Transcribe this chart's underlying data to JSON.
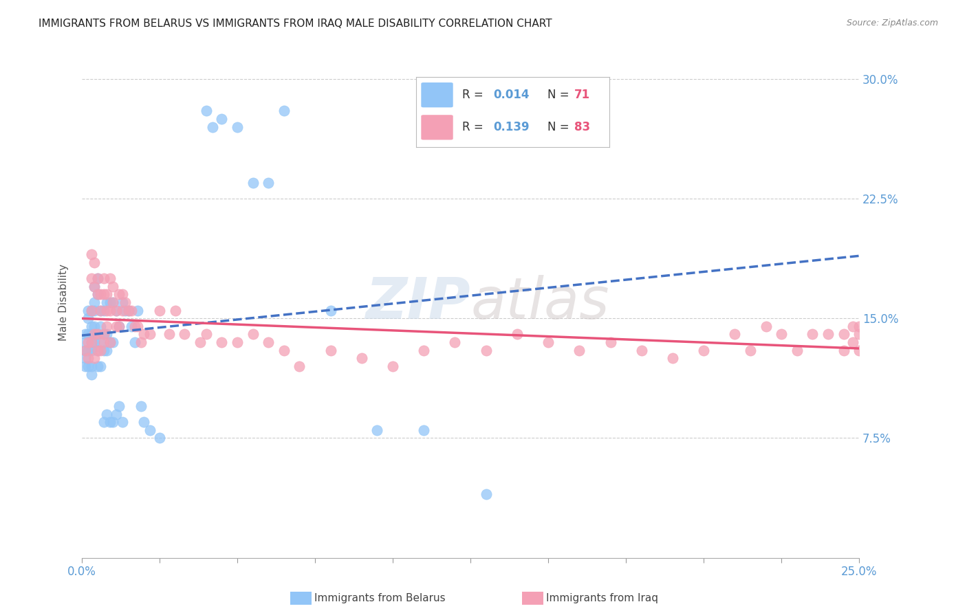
{
  "title": "IMMIGRANTS FROM BELARUS VS IMMIGRANTS FROM IRAQ MALE DISABILITY CORRELATION CHART",
  "source": "Source: ZipAtlas.com",
  "ylabel": "Male Disability",
  "ytick_labels": [
    "7.5%",
    "15.0%",
    "22.5%",
    "30.0%"
  ],
  "ytick_values": [
    0.075,
    0.15,
    0.225,
    0.3
  ],
  "xlim": [
    0.0,
    0.25
  ],
  "ylim": [
    0.0,
    0.32
  ],
  "color_belarus": "#92C5F7",
  "color_iraq": "#F4A0B5",
  "color_trendline_belarus": "#4472C4",
  "color_trendline_iraq": "#E8547A",
  "watermark_zip": "ZIP",
  "watermark_atlas": "atlas",
  "belarus_x": [
    0.001,
    0.001,
    0.001,
    0.001,
    0.001,
    0.002,
    0.002,
    0.002,
    0.002,
    0.002,
    0.003,
    0.003,
    0.003,
    0.003,
    0.003,
    0.003,
    0.003,
    0.004,
    0.004,
    0.004,
    0.004,
    0.004,
    0.005,
    0.005,
    0.005,
    0.005,
    0.005,
    0.006,
    0.006,
    0.006,
    0.006,
    0.007,
    0.007,
    0.007,
    0.007,
    0.008,
    0.008,
    0.008,
    0.008,
    0.009,
    0.009,
    0.009,
    0.01,
    0.01,
    0.01,
    0.011,
    0.011,
    0.012,
    0.012,
    0.013,
    0.013,
    0.014,
    0.015,
    0.016,
    0.017,
    0.018,
    0.019,
    0.02,
    0.022,
    0.025,
    0.04,
    0.042,
    0.045,
    0.05,
    0.055,
    0.06,
    0.065,
    0.08,
    0.095,
    0.11,
    0.13
  ],
  "belarus_y": [
    0.13,
    0.14,
    0.12,
    0.135,
    0.125,
    0.14,
    0.155,
    0.13,
    0.15,
    0.12,
    0.155,
    0.145,
    0.135,
    0.13,
    0.14,
    0.12,
    0.115,
    0.17,
    0.16,
    0.155,
    0.145,
    0.135,
    0.175,
    0.165,
    0.14,
    0.13,
    0.12,
    0.155,
    0.145,
    0.135,
    0.12,
    0.155,
    0.14,
    0.13,
    0.085,
    0.16,
    0.14,
    0.13,
    0.09,
    0.16,
    0.135,
    0.085,
    0.16,
    0.135,
    0.085,
    0.155,
    0.09,
    0.145,
    0.095,
    0.16,
    0.085,
    0.155,
    0.155,
    0.145,
    0.135,
    0.155,
    0.095,
    0.085,
    0.08,
    0.075,
    0.28,
    0.27,
    0.275,
    0.27,
    0.235,
    0.235,
    0.28,
    0.155,
    0.08,
    0.08,
    0.04
  ],
  "iraq_x": [
    0.001,
    0.002,
    0.002,
    0.003,
    0.003,
    0.003,
    0.003,
    0.004,
    0.004,
    0.004,
    0.004,
    0.005,
    0.005,
    0.005,
    0.005,
    0.006,
    0.006,
    0.006,
    0.007,
    0.007,
    0.007,
    0.007,
    0.008,
    0.008,
    0.008,
    0.009,
    0.009,
    0.009,
    0.01,
    0.01,
    0.011,
    0.011,
    0.012,
    0.012,
    0.013,
    0.013,
    0.014,
    0.015,
    0.016,
    0.017,
    0.018,
    0.019,
    0.02,
    0.022,
    0.025,
    0.028,
    0.03,
    0.033,
    0.038,
    0.04,
    0.045,
    0.05,
    0.055,
    0.06,
    0.065,
    0.07,
    0.08,
    0.09,
    0.1,
    0.11,
    0.12,
    0.13,
    0.14,
    0.15,
    0.16,
    0.17,
    0.18,
    0.19,
    0.2,
    0.21,
    0.215,
    0.22,
    0.225,
    0.23,
    0.235,
    0.24,
    0.245,
    0.248,
    0.25,
    0.25,
    0.25,
    0.248,
    0.245
  ],
  "iraq_y": [
    0.13,
    0.135,
    0.125,
    0.19,
    0.175,
    0.155,
    0.135,
    0.185,
    0.17,
    0.14,
    0.125,
    0.175,
    0.165,
    0.14,
    0.13,
    0.165,
    0.155,
    0.13,
    0.175,
    0.165,
    0.14,
    0.135,
    0.165,
    0.155,
    0.145,
    0.175,
    0.155,
    0.135,
    0.17,
    0.16,
    0.155,
    0.145,
    0.165,
    0.145,
    0.165,
    0.155,
    0.16,
    0.155,
    0.155,
    0.145,
    0.145,
    0.135,
    0.14,
    0.14,
    0.155,
    0.14,
    0.155,
    0.14,
    0.135,
    0.14,
    0.135,
    0.135,
    0.14,
    0.135,
    0.13,
    0.12,
    0.13,
    0.125,
    0.12,
    0.13,
    0.135,
    0.13,
    0.14,
    0.135,
    0.13,
    0.135,
    0.13,
    0.125,
    0.13,
    0.14,
    0.13,
    0.145,
    0.14,
    0.13,
    0.14,
    0.14,
    0.14,
    0.145,
    0.145,
    0.14,
    0.13,
    0.135,
    0.13
  ]
}
